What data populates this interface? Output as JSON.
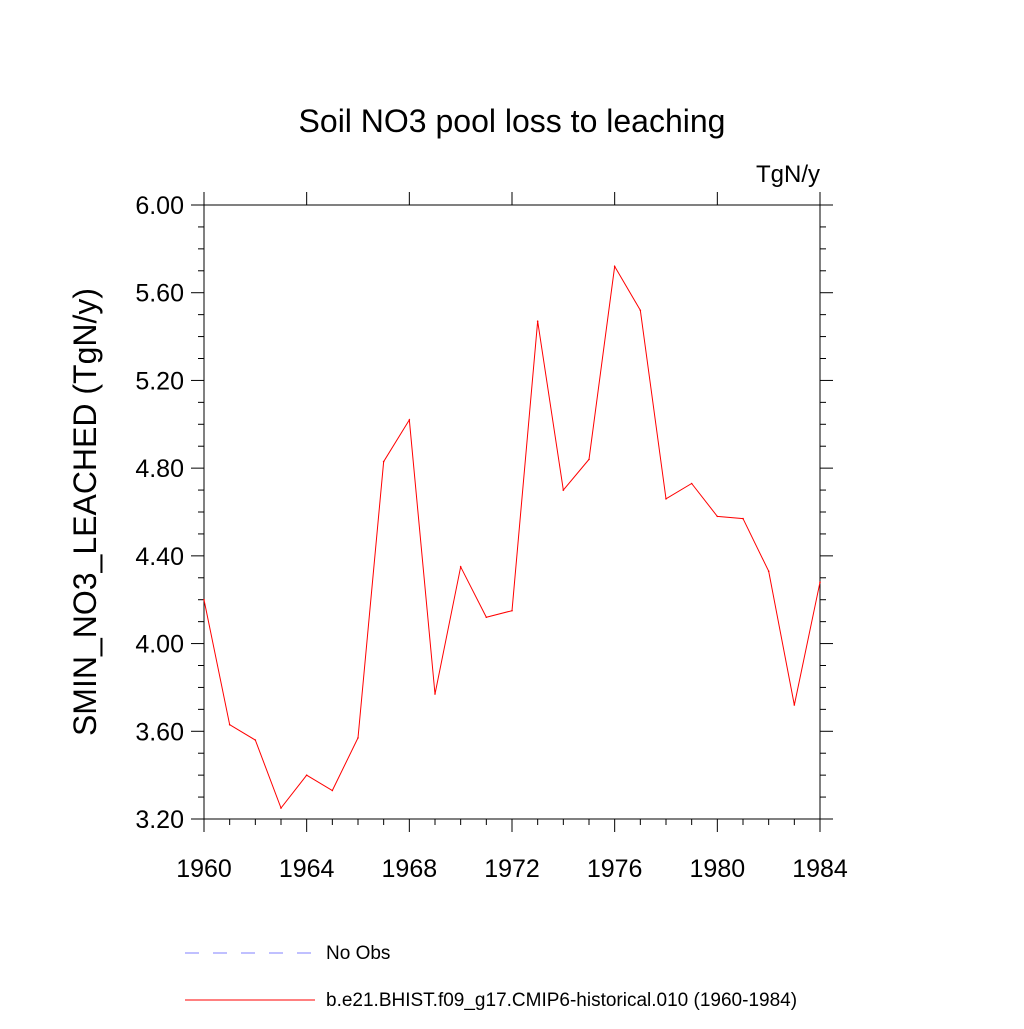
{
  "chart_data": {
    "type": "line",
    "title": "Soil NO3 pool loss to leaching",
    "units_label": "TgN/y",
    "ylabel": "SMIN_NO3_LEACHED  (TgN/y)",
    "xlabel": "",
    "xlim": [
      1960,
      1984
    ],
    "ylim": [
      3.2,
      6.0
    ],
    "x_ticks": [
      1960,
      1964,
      1968,
      1972,
      1976,
      1980,
      1984
    ],
    "x_tick_labels": [
      "1960",
      "1964",
      "1968",
      "1972",
      "1976",
      "1980",
      "1984"
    ],
    "y_ticks": [
      3.2,
      3.6,
      4.0,
      4.4,
      4.8,
      5.2,
      5.6,
      6.0
    ],
    "y_tick_labels": [
      "3.20",
      "3.60",
      "4.00",
      "4.40",
      "4.80",
      "5.20",
      "5.60",
      "6.00"
    ],
    "grid": false,
    "legend_position": "bottom",
    "x": [
      1960,
      1961,
      1962,
      1963,
      1964,
      1965,
      1966,
      1967,
      1968,
      1969,
      1970,
      1971,
      1972,
      1973,
      1974,
      1975,
      1976,
      1977,
      1978,
      1979,
      1980,
      1981,
      1982,
      1983,
      1984
    ],
    "series": [
      {
        "name": "b.e21.BHIST.f09_g17.CMIP6-historical.010 (1960-1984)",
        "color": "#ff0000",
        "values": [
          4.2,
          3.63,
          3.56,
          3.25,
          3.4,
          3.33,
          3.57,
          4.83,
          5.02,
          3.77,
          4.35,
          4.12,
          4.15,
          5.47,
          4.7,
          4.84,
          5.72,
          5.52,
          4.66,
          4.73,
          4.58,
          4.57,
          4.33,
          3.72,
          4.28
        ]
      }
    ],
    "legend": [
      {
        "label": "No Obs",
        "color": "#8080ff",
        "dash": true
      },
      {
        "label": "b.e21.BHIST.f09_g17.CMIP6-historical.010 (1960-1984)",
        "color": "#ff0000",
        "dash": false
      }
    ]
  }
}
